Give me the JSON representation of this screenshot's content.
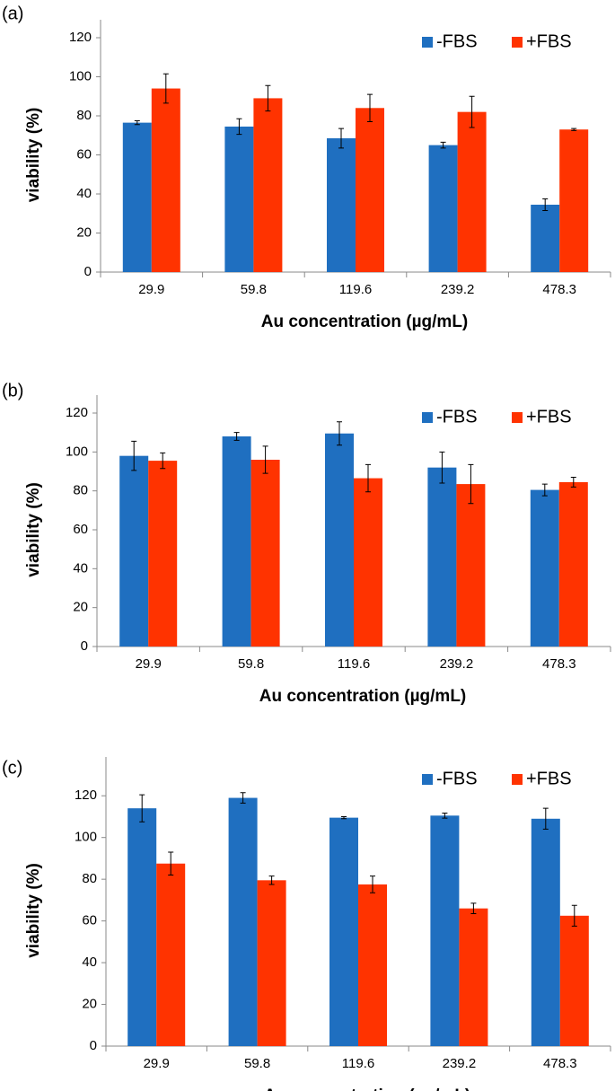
{
  "chart_data": [
    {
      "type": "bar",
      "label": "(a)",
      "xlabel": "Au concentration (µg/mL)",
      "ylabel": "viability (%)",
      "categories": [
        "29.9",
        "59.8",
        "119.6",
        "239.2",
        "478.3"
      ],
      "series": [
        {
          "name": "-FBS",
          "color": "#1f6fc0",
          "values": [
            76.5,
            74.5,
            68.5,
            65,
            34.5
          ],
          "errors": [
            1,
            4,
            5,
            1.5,
            3
          ]
        },
        {
          "name": "+FBS",
          "color": "#ff3300",
          "values": [
            94,
            89,
            84,
            82,
            73
          ],
          "errors": [
            7.5,
            6.5,
            7,
            8,
            0.5
          ]
        }
      ],
      "ylim": [
        0,
        120
      ],
      "yticks": [
        0,
        20,
        40,
        60,
        80,
        100,
        120
      ],
      "grid": false,
      "legend": "upper right"
    },
    {
      "type": "bar",
      "label": "(b)",
      "xlabel": "Au concentration (µg/mL)",
      "ylabel": "viability (%)",
      "categories": [
        "29.9",
        "59.8",
        "119.6",
        "239.2",
        "478.3"
      ],
      "series": [
        {
          "name": "-FBS",
          "color": "#1f6fc0",
          "values": [
            98,
            108,
            109.5,
            92,
            80.5
          ],
          "errors": [
            7.5,
            2,
            6,
            8,
            3
          ]
        },
        {
          "name": "+FBS",
          "color": "#ff3300",
          "values": [
            95.5,
            96,
            86.5,
            83.5,
            84.5
          ],
          "errors": [
            4,
            7,
            7,
            10,
            2.5
          ]
        }
      ],
      "ylim": [
        0,
        120
      ],
      "yticks": [
        0,
        20,
        40,
        60,
        80,
        100,
        120
      ],
      "grid": false,
      "legend": "upper right"
    },
    {
      "type": "bar",
      "label": "(c)",
      "xlabel": "Au concentration (µg/mL)",
      "ylabel": "viability (%)",
      "categories": [
        "29.9",
        "59.8",
        "119.6",
        "239.2",
        "478.3"
      ],
      "series": [
        {
          "name": "-FBS",
          "color": "#1f6fc0",
          "values": [
            114,
            119,
            109.5,
            110.5,
            109
          ],
          "errors": [
            6.5,
            2.5,
            0.5,
            1.2,
            5
          ]
        },
        {
          "name": "+FBS",
          "color": "#ff3300",
          "values": [
            87.5,
            79.5,
            77.5,
            66,
            62.5
          ],
          "errors": [
            5.5,
            2,
            4,
            2.5,
            5
          ]
        }
      ],
      "ylim": [
        0,
        130
      ],
      "yticks": [
        0,
        20,
        40,
        60,
        80,
        100,
        120
      ],
      "grid": false,
      "legend": "upper right"
    }
  ]
}
